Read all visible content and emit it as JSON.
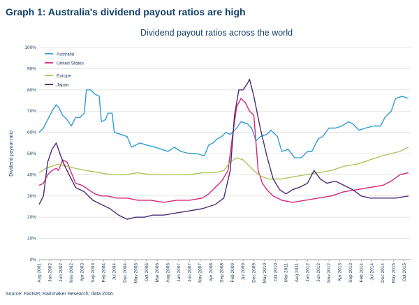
{
  "page": {
    "graph_title": "Graph 1: Australia's dividend payout ratios are high",
    "source": "Source: Factset, Rainmaker Research; data  2016."
  },
  "chart_data": {
    "type": "line",
    "title": "Dividend payout ratios across the world",
    "xlabel": "",
    "ylabel": "Dividend payout ratio",
    "ylim": [
      0,
      100
    ],
    "y_ticks": [
      "0%",
      "10%",
      "20%",
      "30%",
      "40%",
      "50%",
      "60%",
      "70%",
      "80%",
      "90%",
      "100%"
    ],
    "x_range": [
      "2001-08",
      "2016-01"
    ],
    "x_ticks": [
      "Aug 2001",
      "Jan 2002",
      "Jun 2002",
      "Nov 2002",
      "Apr 2003",
      "Sep 2003",
      "Feb 2004",
      "Jul 2004",
      "Dec 2004",
      "May 2005",
      "Oct 2005",
      "Mar 2006",
      "Aug 2006",
      "Jan 2007",
      "Jun 2007",
      "Nov 2007",
      "Apr 2008",
      "Sep 2008",
      "Feb 2009",
      "Jul 2009",
      "Dec 2009",
      "May 2010",
      "Oct 2010",
      "Mar 2011",
      "Aug 2011",
      "Jan 2012",
      "Jun 2012",
      "Nov 2012",
      "Apr 2013",
      "Sep 2013",
      "Feb 2014",
      "Jul 2014",
      "Dec 2014",
      "May 2015",
      "Oct 2015"
    ],
    "legend_position": "top-left",
    "grid": true,
    "series": [
      {
        "name": "Australia",
        "color": "#2e9bd6",
        "points": [
          [
            "2001-08",
            60
          ],
          [
            "2001-10",
            62
          ],
          [
            "2001-12",
            66
          ],
          [
            "2002-02",
            70
          ],
          [
            "2002-04",
            73
          ],
          [
            "2002-05",
            72
          ],
          [
            "2002-07",
            68
          ],
          [
            "2002-09",
            66
          ],
          [
            "2002-11",
            63
          ],
          [
            "2003-01",
            67
          ],
          [
            "2003-03",
            67
          ],
          [
            "2003-05",
            69
          ],
          [
            "2003-06",
            80
          ],
          [
            "2003-08",
            80
          ],
          [
            "2003-10",
            78
          ],
          [
            "2003-12",
            77
          ],
          [
            "2004-01",
            65
          ],
          [
            "2004-03",
            66
          ],
          [
            "2004-04",
            69
          ],
          [
            "2004-06",
            69
          ],
          [
            "2004-07",
            60
          ],
          [
            "2004-10",
            59
          ],
          [
            "2005-01",
            58
          ],
          [
            "2005-03",
            53
          ],
          [
            "2005-05",
            54
          ],
          [
            "2005-07",
            55
          ],
          [
            "2005-10",
            54
          ],
          [
            "2006-02",
            53
          ],
          [
            "2006-05",
            52
          ],
          [
            "2006-08",
            51
          ],
          [
            "2006-11",
            53
          ],
          [
            "2007-02",
            51
          ],
          [
            "2007-06",
            50
          ],
          [
            "2007-09",
            50
          ],
          [
            "2008-01",
            49
          ],
          [
            "2008-03",
            54
          ],
          [
            "2008-05",
            55
          ],
          [
            "2008-07",
            57
          ],
          [
            "2008-09",
            58
          ],
          [
            "2008-11",
            60
          ],
          [
            "2009-01",
            59
          ],
          [
            "2009-04",
            62
          ],
          [
            "2009-06",
            65
          ],
          [
            "2009-09",
            64
          ],
          [
            "2009-11",
            62
          ],
          [
            "2010-01",
            56
          ],
          [
            "2010-03",
            58
          ],
          [
            "2010-06",
            59
          ],
          [
            "2010-08",
            61
          ],
          [
            "2010-11",
            58
          ],
          [
            "2011-01",
            51
          ],
          [
            "2011-04",
            52
          ],
          [
            "2011-07",
            48
          ],
          [
            "2011-10",
            48
          ],
          [
            "2012-01",
            51
          ],
          [
            "2012-03",
            51
          ],
          [
            "2012-06",
            57
          ],
          [
            "2012-08",
            58
          ],
          [
            "2012-11",
            62
          ],
          [
            "2013-02",
            62
          ],
          [
            "2013-05",
            63
          ],
          [
            "2013-08",
            65
          ],
          [
            "2013-10",
            64
          ],
          [
            "2014-01",
            61
          ],
          [
            "2014-04",
            62
          ],
          [
            "2014-08",
            63
          ],
          [
            "2014-11",
            63
          ],
          [
            "2015-01",
            67
          ],
          [
            "2015-04",
            70
          ],
          [
            "2015-06",
            76
          ],
          [
            "2015-09",
            77
          ],
          [
            "2015-12",
            76
          ]
        ]
      },
      {
        "name": "United States",
        "color": "#d6267b",
        "points": [
          [
            "2001-08",
            35
          ],
          [
            "2001-10",
            36
          ],
          [
            "2001-12",
            40
          ],
          [
            "2002-02",
            42
          ],
          [
            "2002-04",
            43
          ],
          [
            "2002-05",
            42
          ],
          [
            "2002-07",
            47
          ],
          [
            "2002-09",
            46
          ],
          [
            "2002-11",
            41
          ],
          [
            "2003-01",
            36
          ],
          [
            "2003-04",
            35
          ],
          [
            "2003-07",
            33
          ],
          [
            "2003-10",
            31
          ],
          [
            "2004-01",
            30
          ],
          [
            "2004-04",
            30
          ],
          [
            "2004-08",
            29
          ],
          [
            "2005-01",
            29
          ],
          [
            "2005-06",
            28
          ],
          [
            "2005-12",
            28
          ],
          [
            "2006-06",
            27
          ],
          [
            "2006-12",
            28
          ],
          [
            "2007-06",
            28
          ],
          [
            "2007-12",
            29
          ],
          [
            "2008-03",
            31
          ],
          [
            "2008-06",
            34
          ],
          [
            "2008-09",
            37
          ],
          [
            "2008-12",
            42
          ],
          [
            "2009-02",
            58
          ],
          [
            "2009-04",
            72
          ],
          [
            "2009-06",
            76
          ],
          [
            "2009-08",
            74
          ],
          [
            "2009-10",
            70
          ],
          [
            "2009-12",
            68
          ],
          [
            "2010-02",
            42
          ],
          [
            "2010-04",
            36
          ],
          [
            "2010-06",
            33
          ],
          [
            "2010-09",
            30
          ],
          [
            "2011-01",
            28
          ],
          [
            "2011-06",
            27
          ],
          [
            "2011-12",
            28
          ],
          [
            "2012-06",
            29
          ],
          [
            "2012-12",
            30
          ],
          [
            "2013-06",
            32
          ],
          [
            "2013-12",
            33
          ],
          [
            "2014-06",
            34
          ],
          [
            "2014-12",
            35
          ],
          [
            "2015-04",
            37
          ],
          [
            "2015-08",
            40
          ],
          [
            "2015-12",
            41
          ]
        ]
      },
      {
        "name": "Europe",
        "color": "#a8c95a",
        "points": [
          [
            "2001-08",
            41
          ],
          [
            "2001-11",
            43
          ],
          [
            "2002-02",
            44
          ],
          [
            "2002-05",
            45
          ],
          [
            "2002-09",
            44
          ],
          [
            "2003-01",
            43
          ],
          [
            "2003-06",
            42
          ],
          [
            "2003-12",
            41
          ],
          [
            "2004-06",
            40
          ],
          [
            "2004-12",
            40
          ],
          [
            "2005-06",
            41
          ],
          [
            "2005-12",
            40
          ],
          [
            "2006-06",
            40
          ],
          [
            "2006-12",
            40
          ],
          [
            "2007-06",
            40
          ],
          [
            "2007-12",
            41
          ],
          [
            "2008-06",
            41
          ],
          [
            "2008-10",
            42
          ],
          [
            "2009-01",
            46
          ],
          [
            "2009-04",
            48
          ],
          [
            "2009-07",
            47
          ],
          [
            "2009-10",
            44
          ],
          [
            "2010-01",
            41
          ],
          [
            "2010-04",
            39
          ],
          [
            "2010-07",
            38
          ],
          [
            "2010-10",
            38
          ],
          [
            "2011-01",
            38
          ],
          [
            "2011-06",
            39
          ],
          [
            "2011-12",
            40
          ],
          [
            "2012-06",
            41
          ],
          [
            "2012-12",
            42
          ],
          [
            "2013-06",
            44
          ],
          [
            "2013-12",
            45
          ],
          [
            "2014-06",
            47
          ],
          [
            "2014-12",
            49
          ],
          [
            "2015-04",
            50
          ],
          [
            "2015-08",
            51
          ],
          [
            "2015-12",
            53
          ]
        ]
      },
      {
        "name": "Japan",
        "color": "#4b2a78",
        "points": [
          [
            "2001-08",
            26
          ],
          [
            "2001-10",
            30
          ],
          [
            "2001-12",
            46
          ],
          [
            "2002-02",
            52
          ],
          [
            "2002-04",
            55
          ],
          [
            "2002-06",
            49
          ],
          [
            "2002-08",
            44
          ],
          [
            "2002-10",
            40
          ],
          [
            "2003-01",
            34
          ],
          [
            "2003-05",
            32
          ],
          [
            "2003-09",
            28
          ],
          [
            "2004-01",
            26
          ],
          [
            "2004-05",
            24
          ],
          [
            "2004-09",
            21
          ],
          [
            "2005-01",
            19
          ],
          [
            "2005-05",
            20
          ],
          [
            "2005-09",
            20
          ],
          [
            "2006-01",
            21
          ],
          [
            "2006-06",
            21
          ],
          [
            "2006-12",
            22
          ],
          [
            "2007-06",
            23
          ],
          [
            "2007-12",
            24
          ],
          [
            "2008-06",
            26
          ],
          [
            "2008-10",
            29
          ],
          [
            "2009-01",
            42
          ],
          [
            "2009-03",
            68
          ],
          [
            "2009-05",
            80
          ],
          [
            "2009-07",
            80
          ],
          [
            "2009-09",
            83
          ],
          [
            "2009-10",
            85
          ],
          [
            "2009-12",
            77
          ],
          [
            "2010-03",
            62
          ],
          [
            "2010-06",
            49
          ],
          [
            "2010-09",
            38
          ],
          [
            "2010-12",
            33
          ],
          [
            "2011-03",
            31
          ],
          [
            "2011-06",
            33
          ],
          [
            "2011-09",
            34
          ],
          [
            "2012-01",
            36
          ],
          [
            "2012-04",
            42
          ],
          [
            "2012-07",
            38
          ],
          [
            "2012-10",
            36
          ],
          [
            "2013-02",
            37
          ],
          [
            "2013-06",
            35
          ],
          [
            "2013-10",
            33
          ],
          [
            "2014-02",
            30
          ],
          [
            "2014-06",
            29
          ],
          [
            "2014-12",
            29
          ],
          [
            "2015-06",
            29
          ],
          [
            "2015-12",
            30
          ]
        ]
      }
    ]
  }
}
